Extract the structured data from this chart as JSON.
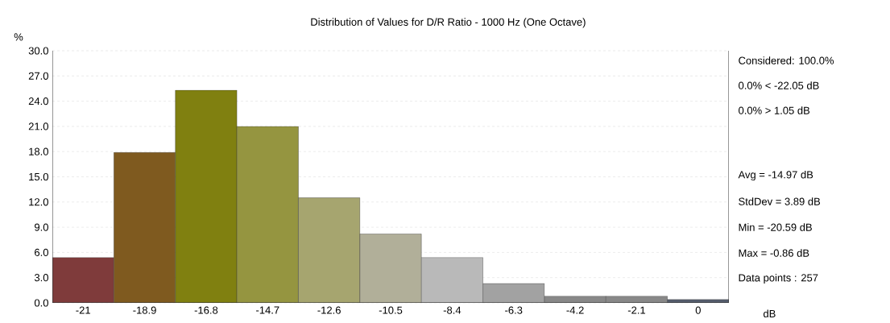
{
  "chart_data": {
    "type": "bar",
    "title": "Distribution of Values for D/R Ratio  - 1000 Hz (One Octave)",
    "ylabel": "%",
    "xlabel": "dB",
    "categories": [
      "-21",
      "-18.9",
      "-16.8",
      "-14.7",
      "-12.6",
      "-10.5",
      "-8.4",
      "-6.3",
      "-4.2",
      "-2.1",
      "0"
    ],
    "values": [
      5.4,
      17.9,
      25.3,
      21.0,
      12.5,
      8.2,
      5.4,
      2.3,
      0.8,
      0.8,
      0.4
    ],
    "colors": [
      "#7f3b3b",
      "#7f5a1f",
      "#808010",
      "#959540",
      "#a6a56f",
      "#b1af99",
      "#b9b9b9",
      "#a2a2a2",
      "#888888",
      "#888888",
      "#555d6d"
    ],
    "ylim": [
      0,
      30
    ],
    "yticks": [
      {
        "value": 0,
        "label": "0.0"
      },
      {
        "value": 3,
        "label": "3.0"
      },
      {
        "value": 6,
        "label": "6.0"
      },
      {
        "value": 9,
        "label": "9.0"
      },
      {
        "value": 12,
        "label": "12.0"
      },
      {
        "value": 15,
        "label": "15.0"
      },
      {
        "value": 18,
        "label": "18.0"
      },
      {
        "value": 21,
        "label": "21.0"
      },
      {
        "value": 24,
        "label": "24.0"
      },
      {
        "value": 27,
        "label": "27.0"
      },
      {
        "value": 30,
        "label": "30.0"
      }
    ],
    "grid": "y",
    "annotations": [
      "Considered: 100.0%",
      "0.0%  < -22.05 dB",
      "0.0%  > 1.05 dB",
      "Avg = -14.97 dB",
      "StdDev = 3.89 dB",
      "Min = -20.59 dB",
      "Max = -0.86 dB",
      "Data points : 257"
    ]
  }
}
